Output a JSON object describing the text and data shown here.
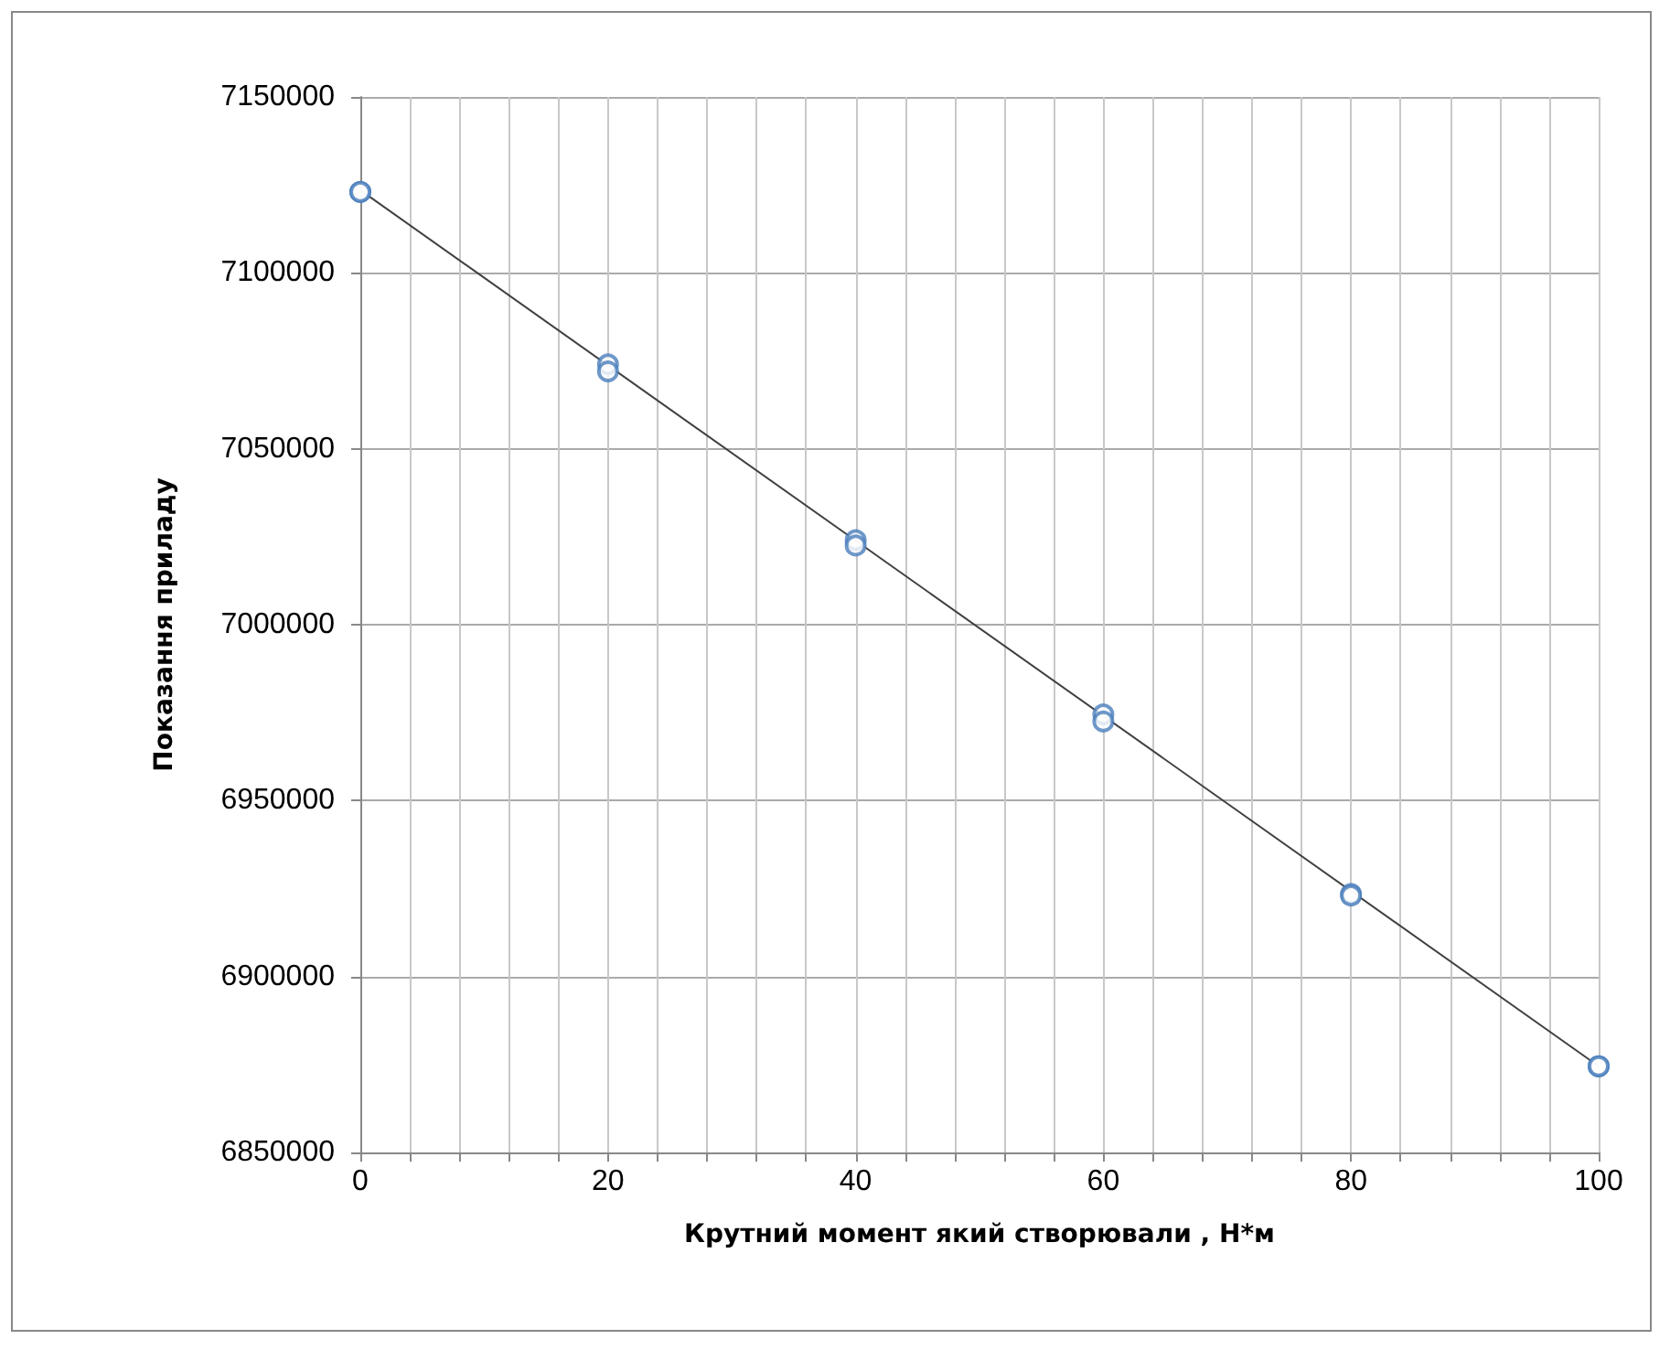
{
  "chart_data": {
    "type": "scatter",
    "xlabel": "Крутний момент який створювали , Н*м",
    "ylabel": "Показання приладу",
    "xlim": [
      0,
      100
    ],
    "xticks": [
      0,
      {
        "value": 4,
        "label": null
      },
      {
        "value": 8,
        "label": null
      },
      {
        "value": 12,
        "label": null
      },
      {
        "value": 16,
        "label": null
      },
      20,
      {
        "value": 24,
        "label": null
      },
      {
        "value": 28,
        "label": null
      },
      {
        "value": 32,
        "label": null
      },
      {
        "value": 36,
        "label": null
      },
      40,
      {
        "value": 44,
        "label": null
      },
      {
        "value": 48,
        "label": null
      },
      {
        "value": 52,
        "label": null
      },
      {
        "value": 56,
        "label": null
      },
      60,
      {
        "value": 64,
        "label": null
      },
      {
        "value": 68,
        "label": null
      },
      {
        "value": 72,
        "label": null
      },
      {
        "value": 76,
        "label": null
      },
      80,
      {
        "value": 84,
        "label": null
      },
      {
        "value": 88,
        "label": null
      },
      {
        "value": 92,
        "label": null
      },
      {
        "value": 96,
        "label": null
      },
      100
    ],
    "ylim": [
      6850000,
      7150000
    ],
    "yticks": [
      6850000,
      6900000,
      6950000,
      7000000,
      7050000,
      7100000,
      7150000
    ],
    "grid": true,
    "series": [
      {
        "color": "#4a7ebb",
        "marker": "circle",
        "x": [
          0,
          0,
          20,
          20,
          40,
          40,
          60,
          60,
          80,
          80,
          100,
          100
        ],
        "values": [
          7123000,
          7123000,
          7074000,
          7072000,
          7024000,
          7022500,
          6974500,
          6972500,
          6923500,
          6923000,
          6874500,
          6874500
        ]
      },
      {
        "type": "line",
        "color": "#404040",
        "marker": "none",
        "line_style": "solid",
        "x": [
          0,
          100
        ],
        "values": [
          7123500,
          6874500
        ]
      }
    ]
  }
}
